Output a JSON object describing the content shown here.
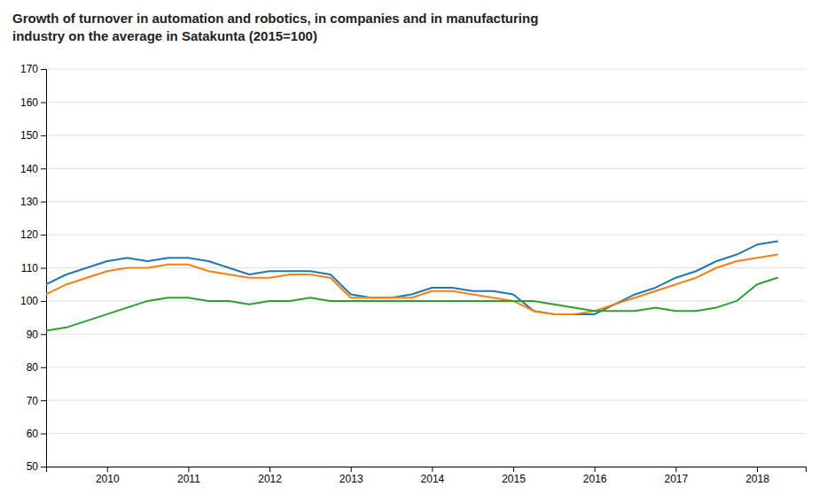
{
  "chart_data": {
    "type": "line",
    "title": "Growth of turnover in automation and robotics, in companies and in manufacturing\nindustry on the average in Satakunta (2015=100)",
    "x": [
      2009.25,
      2009.5,
      2009.75,
      2010.0,
      2010.25,
      2010.5,
      2010.75,
      2011.0,
      2011.25,
      2011.5,
      2011.75,
      2012.0,
      2012.25,
      2012.5,
      2012.75,
      2013.0,
      2013.25,
      2013.5,
      2013.75,
      2014.0,
      2014.25,
      2014.5,
      2014.75,
      2015.0,
      2015.25,
      2015.5,
      2015.75,
      2016.0,
      2016.25,
      2016.5,
      2016.75,
      2017.0,
      2017.25,
      2017.5,
      2017.75,
      2018.0,
      2018.25
    ],
    "series": [
      {
        "values": [
          105,
          108,
          110,
          112,
          113,
          112,
          113,
          113,
          112,
          110,
          108,
          109,
          109,
          109,
          108,
          102,
          101,
          101,
          102,
          104,
          104,
          103,
          103,
          102,
          97,
          96,
          96,
          96,
          99,
          102,
          104,
          107,
          109,
          112,
          114,
          117,
          118
        ]
      },
      {
        "values": [
          102,
          105,
          107,
          109,
          110,
          110,
          111,
          111,
          109,
          108,
          107,
          107,
          108,
          108,
          107,
          101,
          101,
          101,
          101,
          103,
          103,
          102,
          101,
          100,
          97,
          96,
          96,
          97,
          99,
          101,
          103,
          105,
          107,
          110,
          112,
          113,
          114
        ]
      },
      {
        "values": [
          91,
          92,
          94,
          96,
          98,
          100,
          101,
          101,
          100,
          100,
          99,
          100,
          100,
          101,
          100,
          100,
          100,
          100,
          100,
          100,
          100,
          100,
          100,
          100,
          100,
          99,
          98,
          97,
          97,
          97,
          98,
          97,
          97,
          98,
          100,
          105,
          107
        ]
      }
    ],
    "xlim": [
      2009.25,
      2018.6
    ],
    "xticks": [
      2010,
      2011,
      2012,
      2013,
      2014,
      2015,
      2016,
      2017,
      2018
    ],
    "ylim": [
      50,
      170
    ],
    "yticks": [
      50,
      60,
      70,
      80,
      90,
      100,
      110,
      120,
      130,
      140,
      150,
      160,
      170
    ],
    "grid": true
  }
}
